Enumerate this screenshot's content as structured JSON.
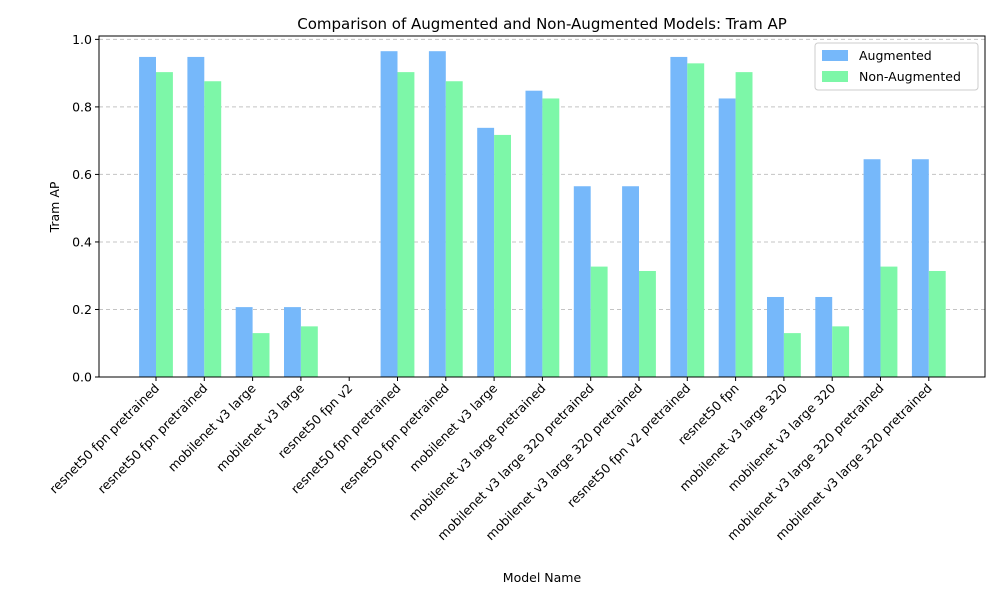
{
  "chart_data": {
    "type": "bar",
    "title": "Comparison of Augmented and Non-Augmented Models: Tram AP",
    "xlabel": "Model Name",
    "ylabel": "Tram AP",
    "ylim": [
      0,
      1.01
    ],
    "yticks": [
      "0.0",
      "0.2",
      "0.4",
      "0.6",
      "0.8",
      "1.0"
    ],
    "grid": "y-dashed",
    "legend_position": "top-right",
    "categories": [
      "resnet50 fpn pretrained",
      "resnet50 fpn pretrained",
      "mobilenet v3 large",
      "mobilenet v3 large",
      "resnet50 fpn v2",
      "resnet50 fpn pretrained",
      "resnet50 fpn pretrained",
      "mobilenet v3 large",
      "mobilenet v3 large pretrained",
      "mobilenet v3 large 320 pretrained",
      "mobilenet v3 large 320 pretrained",
      "resnet50 fpn v2 pretrained",
      "resnet50 fpn",
      "mobilenet v3 large 320",
      "mobilenet v3 large 320",
      "mobilenet v3 large 320 pretrained",
      "mobilenet v3 large 320 pretrained"
    ],
    "series": [
      {
        "name": "Augmented",
        "color": "#76b8fa",
        "values": [
          0.948,
          0.948,
          0.207,
          0.207,
          0.0,
          0.965,
          0.965,
          0.738,
          0.848,
          0.565,
          0.565,
          0.948,
          0.825,
          0.237,
          0.237,
          0.645,
          0.645
        ]
      },
      {
        "name": "Non-Augmented",
        "color": "#7df7a8",
        "values": [
          0.903,
          0.876,
          0.13,
          0.15,
          0.0,
          0.903,
          0.876,
          0.717,
          0.825,
          0.327,
          0.314,
          0.929,
          0.903,
          0.13,
          0.15,
          0.327,
          0.314
        ]
      }
    ]
  }
}
